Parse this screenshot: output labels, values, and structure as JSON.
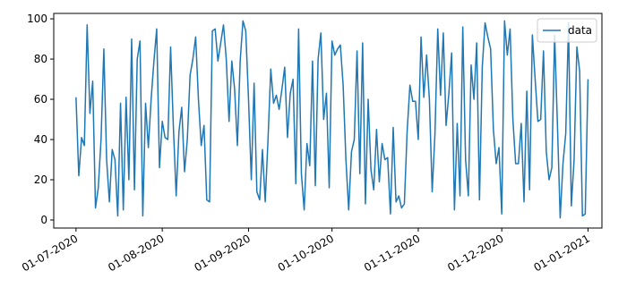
{
  "chart_data": {
    "type": "line",
    "x": [
      "2020-07-01",
      "2020-07-02",
      "2020-07-03",
      "2020-07-04",
      "2020-07-05",
      "2020-07-06",
      "2020-07-07",
      "2020-07-08",
      "2020-07-09",
      "2020-07-10",
      "2020-07-11",
      "2020-07-12",
      "2020-07-13",
      "2020-07-14",
      "2020-07-15",
      "2020-07-16",
      "2020-07-17",
      "2020-07-18",
      "2020-07-19",
      "2020-07-20",
      "2020-07-21",
      "2020-07-22",
      "2020-07-23",
      "2020-07-24",
      "2020-07-25",
      "2020-07-26",
      "2020-07-27",
      "2020-07-28",
      "2020-07-29",
      "2020-07-30",
      "2020-07-31",
      "2020-08-01",
      "2020-08-02",
      "2020-08-03",
      "2020-08-04",
      "2020-08-05",
      "2020-08-06",
      "2020-08-07",
      "2020-08-08",
      "2020-08-09",
      "2020-08-10",
      "2020-08-11",
      "2020-08-12",
      "2020-08-13",
      "2020-08-14",
      "2020-08-15",
      "2020-08-16",
      "2020-08-17",
      "2020-08-18",
      "2020-08-19",
      "2020-08-20",
      "2020-08-21",
      "2020-08-22",
      "2020-08-23",
      "2020-08-24",
      "2020-08-25",
      "2020-08-26",
      "2020-08-27",
      "2020-08-28",
      "2020-08-29",
      "2020-08-30",
      "2020-08-31",
      "2020-09-01",
      "2020-09-02",
      "2020-09-03",
      "2020-09-04",
      "2020-09-05",
      "2020-09-06",
      "2020-09-07",
      "2020-09-08",
      "2020-09-09",
      "2020-09-10",
      "2020-09-11",
      "2020-09-12",
      "2020-09-13",
      "2020-09-14",
      "2020-09-15",
      "2020-09-16",
      "2020-09-17",
      "2020-09-18",
      "2020-09-19",
      "2020-09-20",
      "2020-09-21",
      "2020-09-22",
      "2020-09-23",
      "2020-09-24",
      "2020-09-25",
      "2020-09-26",
      "2020-09-27",
      "2020-09-28",
      "2020-09-29",
      "2020-09-30",
      "2020-10-01",
      "2020-10-02",
      "2020-10-03",
      "2020-10-04",
      "2020-10-05",
      "2020-10-06",
      "2020-10-07",
      "2020-10-08",
      "2020-10-09",
      "2020-10-10",
      "2020-10-11",
      "2020-10-12",
      "2020-10-13",
      "2020-10-14",
      "2020-10-15",
      "2020-10-16",
      "2020-10-17",
      "2020-10-18",
      "2020-10-19",
      "2020-10-20",
      "2020-10-21",
      "2020-10-22",
      "2020-10-23",
      "2020-10-24",
      "2020-10-25",
      "2020-10-26",
      "2020-10-27",
      "2020-10-28",
      "2020-10-29",
      "2020-10-30",
      "2020-10-31",
      "2020-11-01",
      "2020-11-02",
      "2020-11-03",
      "2020-11-04",
      "2020-11-05",
      "2020-11-06",
      "2020-11-07",
      "2020-11-08",
      "2020-11-09",
      "2020-11-10",
      "2020-11-11",
      "2020-11-12",
      "2020-11-13",
      "2020-11-14",
      "2020-11-15",
      "2020-11-16",
      "2020-11-17",
      "2020-11-18",
      "2020-11-19",
      "2020-11-20",
      "2020-11-21",
      "2020-11-22",
      "2020-11-23",
      "2020-11-24",
      "2020-11-25",
      "2020-11-26",
      "2020-11-27",
      "2020-11-28",
      "2020-11-29",
      "2020-11-30",
      "2020-12-01",
      "2020-12-02",
      "2020-12-03",
      "2020-12-04",
      "2020-12-05",
      "2020-12-06",
      "2020-12-07",
      "2020-12-08",
      "2020-12-09",
      "2020-12-10",
      "2020-12-11",
      "2020-12-12",
      "2020-12-13",
      "2020-12-14",
      "2020-12-15",
      "2020-12-16",
      "2020-12-17",
      "2020-12-18",
      "2020-12-19",
      "2020-12-20",
      "2020-12-21",
      "2020-12-22",
      "2020-12-23",
      "2020-12-24",
      "2020-12-25",
      "2020-12-26",
      "2020-12-27",
      "2020-12-28",
      "2020-12-29",
      "2020-12-30",
      "2020-12-31",
      "2021-01-01"
    ],
    "series": [
      {
        "name": "data",
        "color": "#1f77b4",
        "values": [
          61,
          22,
          41,
          37,
          97,
          53,
          69,
          6,
          16,
          40,
          85,
          30,
          9,
          35,
          30,
          2,
          58,
          5,
          61,
          20,
          90,
          15,
          80,
          89,
          2,
          58,
          36,
          60,
          79,
          95,
          26,
          49,
          41,
          40,
          86,
          46,
          12,
          44,
          56,
          24,
          40,
          72,
          80,
          91,
          60,
          37,
          47,
          10,
          9,
          94,
          95,
          79,
          88,
          97,
          80,
          49,
          79,
          65,
          37,
          79,
          99,
          94,
          60,
          20,
          68,
          14,
          10,
          35,
          9,
          40,
          75,
          58,
          62,
          55,
          65,
          76,
          41,
          63,
          70,
          18,
          95,
          23,
          5,
          38,
          27,
          79,
          17,
          80,
          93,
          50,
          63,
          16,
          89,
          82,
          85,
          87,
          67,
          30,
          5,
          34,
          40,
          84,
          23,
          88,
          8,
          60,
          25,
          15,
          45,
          19,
          38,
          30,
          31,
          3,
          46,
          9,
          12,
          6,
          8,
          44,
          67,
          59,
          59,
          40,
          91,
          61,
          82,
          60,
          14,
          43,
          95,
          62,
          93,
          47,
          63,
          83,
          5,
          48,
          12,
          96,
          30,
          12,
          77,
          60,
          88,
          10,
          76,
          98,
          91,
          85,
          45,
          28,
          36,
          3,
          99,
          82,
          95,
          50,
          28,
          28,
          48,
          9,
          64,
          15,
          92,
          70,
          49,
          50,
          84,
          34,
          20,
          26,
          92,
          48,
          1,
          28,
          43,
          98,
          7,
          30,
          86,
          74,
          2,
          3,
          70
        ]
      }
    ],
    "xlim": [
      "2020-06-23",
      "2021-01-06"
    ],
    "xticks": [
      {
        "value": "2020-07-01",
        "label": "01-07-2020"
      },
      {
        "value": "2020-08-01",
        "label": "01-08-2020"
      },
      {
        "value": "2020-09-01",
        "label": "01-09-2020"
      },
      {
        "value": "2020-10-01",
        "label": "01-10-2020"
      },
      {
        "value": "2020-11-01",
        "label": "01-11-2020"
      },
      {
        "value": "2020-12-01",
        "label": "01-12-2020"
      },
      {
        "value": "2021-01-01",
        "label": "01-01-2021"
      }
    ],
    "ylim": [
      -4,
      102.7
    ],
    "yticks": [
      0,
      20,
      40,
      60,
      80,
      100
    ],
    "legend": "upper right"
  }
}
